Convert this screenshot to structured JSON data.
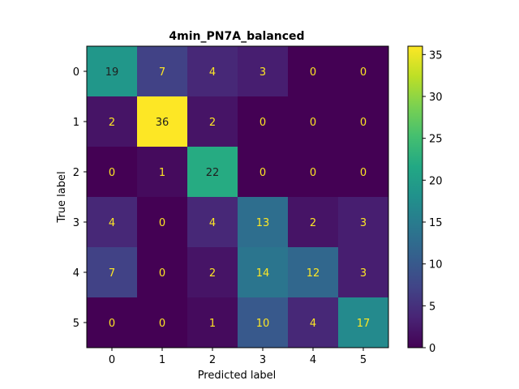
{
  "chart_data": {
    "type": "heatmap",
    "title": "4min_PN7A_balanced",
    "xlabel": "Predicted label",
    "ylabel": "True label",
    "x_categories": [
      "0",
      "1",
      "2",
      "3",
      "4",
      "5"
    ],
    "y_categories": [
      "0",
      "1",
      "2",
      "3",
      "4",
      "5"
    ],
    "values": [
      [
        19,
        7,
        4,
        3,
        0,
        0
      ],
      [
        2,
        36,
        2,
        0,
        0,
        0
      ],
      [
        0,
        1,
        22,
        0,
        0,
        0
      ],
      [
        4,
        0,
        4,
        13,
        2,
        3
      ],
      [
        7,
        0,
        2,
        14,
        12,
        3
      ],
      [
        0,
        0,
        1,
        10,
        4,
        17
      ]
    ],
    "colormap": "viridis",
    "vmin": 0,
    "vmax": 36,
    "colorbar_ticks": [
      "0",
      "5",
      "10",
      "15",
      "20",
      "25",
      "30",
      "35"
    ],
    "text_color_low": "#fde725",
    "text_color_high": "#1f1f1f"
  }
}
